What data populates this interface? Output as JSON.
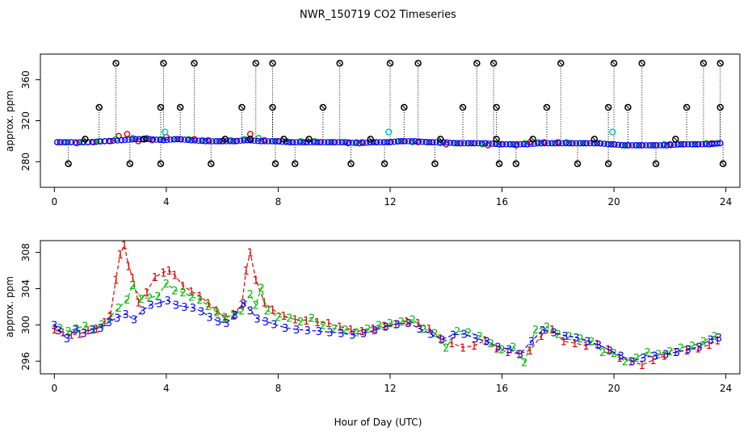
{
  "figure": {
    "title": "NWR_150719  CO2 Timeseries",
    "xlabel": "Hour of Day (UTC)"
  },
  "colors": {
    "s1": "#dd0000",
    "s2": "#00bb00",
    "s3": "#0000ff",
    "outlier": "#000000",
    "flag": "#00cccc"
  },
  "chart_data": [
    {
      "type": "scatter",
      "title": "",
      "ylabel": "approx. ppm",
      "xlim": [
        -0.5,
        24.5
      ],
      "ylim": [
        255,
        385
      ],
      "xticks": [
        0,
        4,
        8,
        12,
        16,
        20,
        24
      ],
      "yticks": [
        280,
        320,
        360
      ],
      "series_baseline": [
        {
          "name": "1",
          "x": [
            0.2,
            0.8,
            1.4,
            2.0,
            2.3,
            2.6,
            3.0,
            3.5,
            4.0,
            4.5,
            5.0,
            5.5,
            6.0,
            6.5,
            7.0,
            7.5,
            8.0,
            8.5,
            9.0,
            9.5,
            10.0,
            10.5,
            11.0,
            11.5,
            12.0,
            12.5,
            13.0,
            13.5,
            14.0,
            14.5,
            15.0,
            15.5,
            16.0,
            16.5,
            17.0,
            17.5,
            18.0,
            18.5,
            19.0,
            19.5,
            20.0,
            20.5,
            21.0,
            21.5,
            22.0,
            22.5,
            23.0,
            23.5
          ],
          "y": [
            299,
            298,
            299,
            300,
            305,
            307,
            300,
            301,
            304,
            302,
            302,
            301,
            300,
            300,
            307,
            301,
            300,
            299,
            299,
            299,
            299,
            298,
            299,
            299,
            299,
            300,
            299,
            299,
            297,
            298,
            298,
            296,
            297,
            296,
            299,
            299,
            299,
            298,
            298,
            298,
            297,
            296,
            296,
            296,
            297,
            297,
            297,
            298
          ]
        },
        {
          "name": "2",
          "x": [
            0.4,
            1.0,
            1.6,
            2.2,
            2.8,
            3.3,
            3.8,
            4.3,
            4.8,
            5.3,
            5.8,
            6.3,
            6.8,
            7.3,
            7.8,
            8.3,
            8.8,
            9.3,
            9.8,
            10.3,
            10.8,
            11.3,
            11.8,
            12.3,
            12.8,
            13.3,
            13.8,
            14.3,
            14.8,
            15.3,
            15.8,
            16.3,
            16.8,
            17.3,
            17.8,
            18.3,
            18.8,
            19.3,
            19.8,
            20.3,
            20.8,
            21.3,
            21.8,
            22.3,
            22.8,
            23.3,
            23.7
          ],
          "y": [
            299,
            299,
            300,
            302,
            303,
            303,
            302,
            302,
            302,
            301,
            300,
            301,
            302,
            303,
            300,
            300,
            300,
            300,
            299,
            299,
            299,
            299,
            299,
            300,
            299,
            299,
            298,
            298,
            298,
            297,
            298,
            297,
            298,
            299,
            298,
            299,
            298,
            298,
            297,
            296,
            296,
            296,
            297,
            297,
            297,
            298,
            298
          ]
        },
        {
          "name": "3",
          "x": [
            0.1,
            0.6,
            1.2,
            1.8,
            2.4,
            2.9,
            3.4,
            3.9,
            4.4,
            4.9,
            5.4,
            5.9,
            6.4,
            6.9,
            7.4,
            7.9,
            8.4,
            8.9,
            9.4,
            9.9,
            10.4,
            10.9,
            11.4,
            11.9,
            12.4,
            12.9,
            13.4,
            13.9,
            14.4,
            14.9,
            15.4,
            15.9,
            16.4,
            16.9,
            17.4,
            17.9,
            18.4,
            18.9,
            19.4,
            19.9,
            20.4,
            20.9,
            21.4,
            21.9,
            22.4,
            22.9,
            23.4,
            23.8
          ],
          "y": [
            299,
            299,
            299,
            300,
            301,
            302,
            302,
            301,
            302,
            301,
            300,
            300,
            300,
            301,
            300,
            300,
            299,
            299,
            299,
            299,
            299,
            298,
            299,
            299,
            300,
            300,
            299,
            299,
            298,
            298,
            298,
            297,
            297,
            297,
            298,
            298,
            298,
            298,
            298,
            297,
            296,
            296,
            296,
            296,
            297,
            297,
            297,
            298
          ]
        }
      ],
      "outliers_high": [
        2.2,
        3.9,
        5.0,
        7.2,
        7.8,
        10.2,
        12.0,
        13.0,
        15.1,
        15.7,
        18.1,
        20.0,
        21.0,
        23.2,
        23.8
      ],
      "outliers_mid": [
        1.6,
        3.8,
        4.5,
        6.7,
        7.8,
        9.6,
        12.5,
        14.6,
        15.8,
        17.6,
        19.8,
        20.5,
        22.6,
        23.8
      ],
      "outliers_low_ring": [
        1.1,
        3.2,
        6.1,
        7.0,
        8.2,
        9.1,
        11.3,
        13.8,
        15.8,
        17.1,
        19.3,
        22.2
      ],
      "outliers_floor": [
        0.5,
        2.7,
        3.8,
        5.6,
        7.9,
        8.6,
        10.6,
        11.8,
        13.6,
        15.9,
        16.5,
        18.7,
        19.8,
        21.5,
        23.9
      ],
      "flagged_points": [
        {
          "x": 3.95,
          "y": 309
        },
        {
          "x": 11.95,
          "y": 309
        },
        {
          "x": 19.95,
          "y": 309
        }
      ]
    },
    {
      "type": "scatter",
      "title": "",
      "ylabel": "approx. ppm",
      "xlim": [
        -0.5,
        24.5
      ],
      "ylim": [
        294.6,
        309.3
      ],
      "xticks": [
        0,
        4,
        8,
        12,
        16,
        20,
        24
      ],
      "yticks": [
        296,
        300,
        304,
        308
      ],
      "series": [
        {
          "name": "1",
          "label": "1",
          "x": [
            0.0,
            0.3,
            0.6,
            0.9,
            1.2,
            1.5,
            1.8,
            2.0,
            2.2,
            2.35,
            2.5,
            2.65,
            2.8,
            3.0,
            3.3,
            3.6,
            3.9,
            4.1,
            4.3,
            4.6,
            4.9,
            5.2,
            5.5,
            5.8,
            6.1,
            6.4,
            6.7,
            6.85,
            7.0,
            7.2,
            7.5,
            7.8,
            8.2,
            8.6,
            9.0,
            9.4,
            9.8,
            10.2,
            10.6,
            11.0,
            11.4,
            11.8,
            12.2,
            12.6,
            13.0,
            13.4,
            13.8,
            14.2,
            14.6,
            15.0,
            15.4,
            15.8,
            16.2,
            16.6,
            17.0,
            17.4,
            17.8,
            18.2,
            18.6,
            19.0,
            19.4,
            19.8,
            20.2,
            20.6,
            21.0,
            21.4,
            21.8,
            22.2,
            22.6,
            23.0,
            23.4,
            23.7
          ],
          "y": [
            299.5,
            299.2,
            298.9,
            299.0,
            299.4,
            299.6,
            300.3,
            301.0,
            305.0,
            307.8,
            308.8,
            306.5,
            305.2,
            302.5,
            303.6,
            305.3,
            305.8,
            306.0,
            305.5,
            304.3,
            303.7,
            303.2,
            302.4,
            301.6,
            300.7,
            301.2,
            302.2,
            306.0,
            308.0,
            305.0,
            302.5,
            301.7,
            301.0,
            300.6,
            300.5,
            300.3,
            300.2,
            299.8,
            299.5,
            299.3,
            299.6,
            299.9,
            300.1,
            300.4,
            300.2,
            299.6,
            298.5,
            298.0,
            297.5,
            297.7,
            298.3,
            297.4,
            297.0,
            296.8,
            297.2,
            298.8,
            299.5,
            298.2,
            298.0,
            297.7,
            297.9,
            297.3,
            296.4,
            296.0,
            295.6,
            296.1,
            296.6,
            297.0,
            297.2,
            297.4,
            297.8,
            298.3
          ]
        },
        {
          "name": "2",
          "label": "2",
          "x": [
            0.2,
            0.5,
            0.8,
            1.1,
            1.4,
            1.7,
            2.0,
            2.3,
            2.6,
            2.8,
            3.1,
            3.4,
            3.7,
            4.0,
            4.3,
            4.6,
            4.9,
            5.2,
            5.5,
            5.8,
            6.1,
            6.4,
            6.7,
            7.0,
            7.2,
            7.4,
            7.6,
            8.0,
            8.4,
            8.8,
            9.2,
            9.6,
            10.0,
            10.4,
            10.8,
            11.2,
            11.6,
            12.0,
            12.4,
            12.8,
            13.2,
            13.6,
            14.0,
            14.4,
            14.8,
            15.2,
            15.6,
            16.0,
            16.4,
            16.8,
            17.2,
            17.6,
            18.0,
            18.4,
            18.8,
            19.2,
            19.6,
            20.0,
            20.4,
            20.8,
            21.2,
            21.6,
            22.0,
            22.4,
            22.8,
            23.2,
            23.6
          ],
          "y": [
            299.7,
            299.3,
            299.6,
            299.9,
            299.5,
            300.1,
            300.9,
            301.9,
            302.8,
            304.4,
            302.9,
            303.0,
            303.2,
            304.6,
            303.8,
            303.6,
            303.1,
            302.8,
            302.1,
            301.4,
            300.9,
            301.0,
            301.6,
            303.4,
            302.2,
            304.1,
            301.6,
            300.9,
            300.8,
            300.4,
            300.8,
            300.0,
            299.6,
            299.5,
            299.2,
            299.6,
            300.0,
            300.2,
            300.4,
            300.6,
            299.6,
            299.1,
            297.5,
            299.3,
            299.2,
            298.8,
            298.0,
            297.3,
            297.6,
            295.9,
            299.5,
            299.8,
            299.0,
            298.8,
            298.5,
            298.2,
            297.0,
            296.9,
            296.0,
            296.4,
            297.0,
            296.8,
            297.1,
            297.5,
            297.7,
            298.2,
            298.8
          ]
        },
        {
          "name": "3",
          "label": "3",
          "x": [
            0.0,
            0.15,
            0.45,
            0.75,
            1.05,
            1.35,
            1.65,
            1.95,
            2.25,
            2.55,
            2.85,
            3.15,
            3.45,
            3.75,
            4.05,
            4.35,
            4.65,
            4.95,
            5.25,
            5.55,
            5.85,
            6.15,
            6.45,
            6.75,
            7.0,
            7.25,
            7.55,
            7.85,
            8.25,
            8.65,
            9.05,
            9.45,
            9.85,
            10.25,
            10.65,
            11.05,
            11.45,
            11.85,
            12.25,
            12.65,
            13.05,
            13.45,
            13.85,
            14.25,
            14.65,
            15.05,
            15.45,
            15.85,
            16.25,
            16.65,
            17.05,
            17.45,
            17.85,
            18.25,
            18.65,
            19.05,
            19.45,
            19.85,
            20.25,
            20.65,
            21.05,
            21.45,
            21.85,
            22.25,
            22.65,
            23.05,
            23.45,
            23.75
          ],
          "y": [
            300.0,
            299.4,
            298.5,
            299.5,
            299.1,
            299.5,
            299.7,
            300.3,
            300.8,
            301.2,
            300.6,
            301.6,
            302.2,
            302.4,
            302.7,
            302.2,
            302.0,
            301.9,
            301.5,
            300.9,
            300.4,
            300.2,
            301.1,
            302.4,
            301.6,
            300.7,
            300.4,
            300.1,
            299.7,
            299.5,
            299.4,
            299.3,
            299.2,
            299.1,
            298.9,
            299.1,
            299.4,
            299.8,
            300.1,
            300.2,
            299.6,
            299.0,
            298.4,
            298.9,
            299.0,
            298.5,
            298.2,
            297.6,
            297.3,
            296.8,
            298.2,
            299.4,
            299.2,
            298.8,
            298.6,
            298.2,
            297.8,
            297.2,
            296.6,
            296.0,
            296.4,
            296.6,
            296.8,
            297.0,
            297.3,
            297.6,
            298.4,
            298.6
          ]
        }
      ]
    }
  ]
}
